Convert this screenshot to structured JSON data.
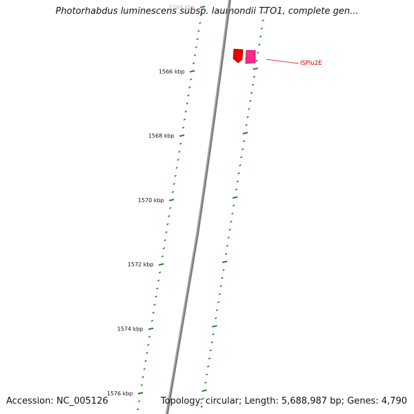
{
  "title": "Photorhabdus luminescens subsp. laumondii TTO1, complete gen...",
  "footer": {
    "accession": "Accession: NC_005126",
    "summary": "Topology: circular; Length: 5,688,987 bp; Genes: 4,790"
  },
  "ticks": [
    {
      "label": "1564 kbp",
      "faded": true
    },
    {
      "label": "1566 kbp",
      "faded": false
    },
    {
      "label": "1568 kbp",
      "faded": false
    },
    {
      "label": "1570 kbp",
      "faded": false
    },
    {
      "label": "1572 kbp",
      "faded": false
    },
    {
      "label": "1574 kbp",
      "faded": false
    },
    {
      "label": "1576 kbp",
      "faded": false
    }
  ],
  "feature": {
    "label": "ISPlu2E"
  },
  "colors": {
    "backbone": "#8a8a8a",
    "ticks": "#1f7a1f",
    "feature_red": "#ee0000",
    "feature_pink": "#ff2a8a",
    "feature_label": "#cc0000"
  }
}
